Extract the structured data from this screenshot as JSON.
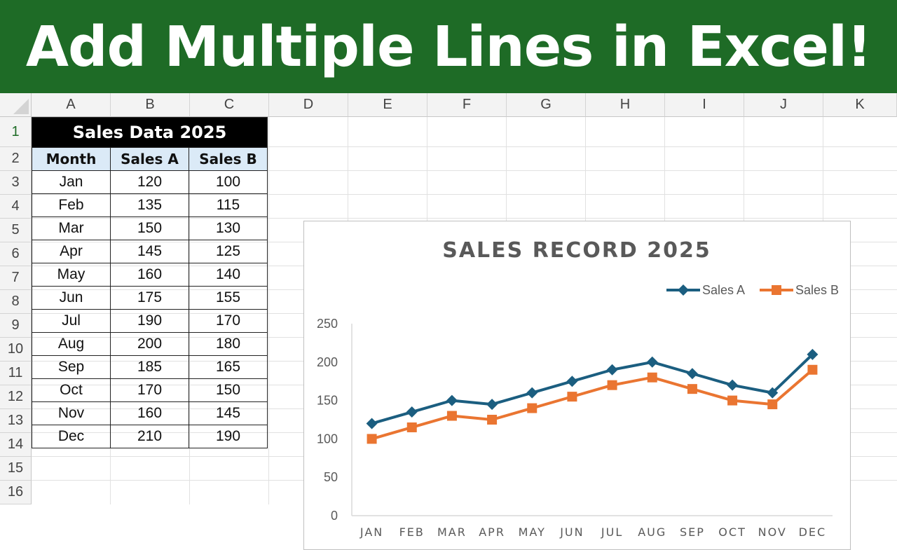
{
  "banner": {
    "title": "Add Multiple Lines in Excel!"
  },
  "sheet": {
    "columns": [
      "A",
      "B",
      "C",
      "D",
      "E",
      "F",
      "G",
      "H",
      "I",
      "J",
      "K"
    ],
    "rows": [
      "1",
      "2",
      "3",
      "4",
      "5",
      "6",
      "7",
      "8",
      "9",
      "10",
      "11",
      "12",
      "13",
      "14",
      "15",
      "16"
    ],
    "table": {
      "title": "Sales Data 2025",
      "headers": [
        "Month",
        "Sales A",
        "Sales B"
      ],
      "rows": [
        [
          "Jan",
          "120",
          "100"
        ],
        [
          "Feb",
          "135",
          "115"
        ],
        [
          "Mar",
          "150",
          "130"
        ],
        [
          "Apr",
          "145",
          "125"
        ],
        [
          "May",
          "160",
          "140"
        ],
        [
          "Jun",
          "175",
          "155"
        ],
        [
          "Jul",
          "190",
          "170"
        ],
        [
          "Aug",
          "200",
          "180"
        ],
        [
          "Sep",
          "185",
          "165"
        ],
        [
          "Oct",
          "170",
          "150"
        ],
        [
          "Nov",
          "160",
          "145"
        ],
        [
          "Dec",
          "210",
          "190"
        ]
      ]
    }
  },
  "chart_data": {
    "type": "line",
    "title": "SALES RECORD 2025",
    "categories": [
      "JAN",
      "FEB",
      "MAR",
      "APR",
      "MAY",
      "JUN",
      "JUL",
      "AUG",
      "SEP",
      "OCT",
      "NOV",
      "DEC"
    ],
    "series": [
      {
        "name": "Sales A",
        "values": [
          120,
          135,
          150,
          145,
          160,
          175,
          190,
          200,
          185,
          170,
          160,
          210
        ],
        "color": "#1b5e80",
        "marker": "diamond"
      },
      {
        "name": "Sales B",
        "values": [
          100,
          115,
          130,
          125,
          140,
          155,
          170,
          180,
          165,
          150,
          145,
          190
        ],
        "color": "#ea7531",
        "marker": "square"
      }
    ],
    "ylim": [
      0,
      250
    ],
    "yticks": [
      0,
      50,
      100,
      150,
      200,
      250
    ],
    "grid": false,
    "legend": "top-right",
    "xlabel": "",
    "ylabel": ""
  }
}
